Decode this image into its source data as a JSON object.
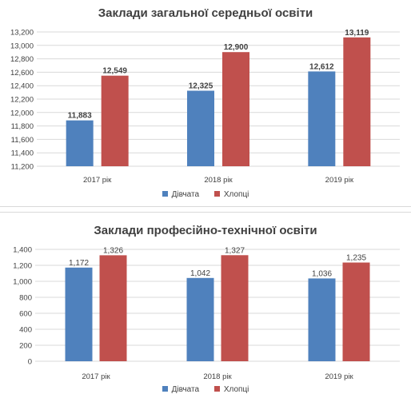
{
  "chart_data": [
    {
      "type": "bar",
      "title": "Заклади загальної середньої освіти",
      "categories": [
        "2017 рік",
        "2018 рік",
        "2019 рік"
      ],
      "series": [
        {
          "name": "Дівчата",
          "color": "#4f81bd",
          "values": [
            11883,
            12325,
            12612
          ],
          "labels": [
            "11,883",
            "12,325",
            "12,612"
          ]
        },
        {
          "name": "Хлопці",
          "color": "#c0504d",
          "values": [
            12549,
            12900,
            13119
          ],
          "labels": [
            "12,549",
            "12,900",
            "13,119"
          ]
        }
      ],
      "ylim": [
        11200,
        13200
      ],
      "yticks": [
        11200,
        11400,
        11600,
        11800,
        12000,
        12200,
        12400,
        12600,
        12800,
        13000,
        13200
      ],
      "ytick_labels": [
        "11,200",
        "11,400",
        "11,600",
        "11,800",
        "12,000",
        "12,200",
        "12,400",
        "12,600",
        "12,800",
        "13,000",
        "13,200"
      ],
      "value_labels_bold": true,
      "grid": true,
      "legend": "bottom"
    },
    {
      "type": "bar",
      "title": "Заклади професійно-технічної освіти",
      "categories": [
        "2017 рік",
        "2018 рік",
        "2019 рік"
      ],
      "series": [
        {
          "name": "Дівчата",
          "color": "#4f81bd",
          "values": [
            1172,
            1042,
            1036
          ],
          "labels": [
            "1,172",
            "1,042",
            "1,036"
          ]
        },
        {
          "name": "Хлопці",
          "color": "#c0504d",
          "values": [
            1326,
            1327,
            1235
          ],
          "labels": [
            "1,326",
            "1,327",
            "1,235"
          ]
        }
      ],
      "ylim": [
        0,
        1400
      ],
      "yticks": [
        0,
        200,
        400,
        600,
        800,
        1000,
        1200,
        1400
      ],
      "ytick_labels": [
        "0",
        "200",
        "400",
        "600",
        "800",
        "1,000",
        "1,200",
        "1,400"
      ],
      "value_labels_bold": false,
      "grid": true,
      "legend": "bottom"
    }
  ]
}
